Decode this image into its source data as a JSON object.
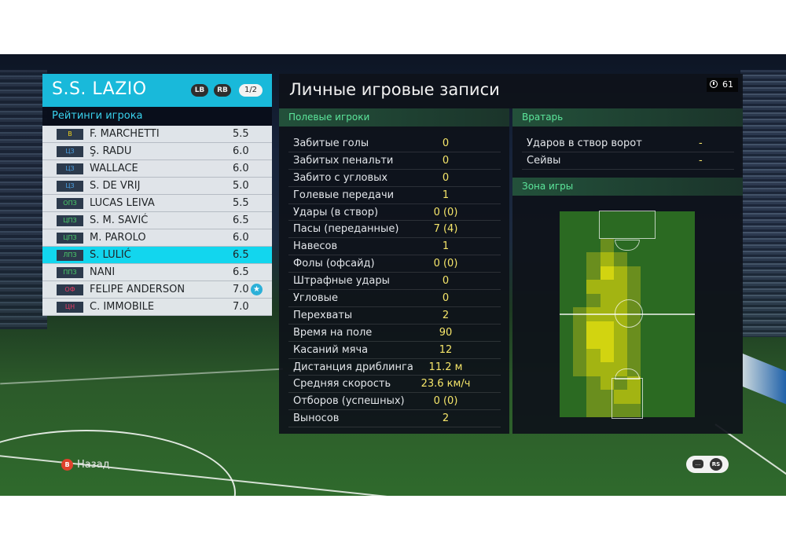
{
  "team": {
    "name": "S.S. LAZIO",
    "lb_label": "LB",
    "rb_label": "RB",
    "page_indicator": "1/2",
    "ratings_title": "Рейтинги игрока",
    "players": [
      {
        "pos": "В",
        "pos_color": "#f2d21a",
        "name": "F. MARCHETTI",
        "rating": "5.5"
      },
      {
        "pos": "ЦЗ",
        "pos_color": "#4a9ee0",
        "name": "Ş. RADU",
        "rating": "6.0"
      },
      {
        "pos": "ЦЗ",
        "pos_color": "#4a9ee0",
        "name": "WALLACE",
        "rating": "6.0"
      },
      {
        "pos": "ЦЗ",
        "pos_color": "#4a9ee0",
        "name": "S. DE VRIJ",
        "rating": "5.0"
      },
      {
        "pos": "ОПЗ",
        "pos_color": "#4bd06a",
        "name": "LUCAS LEIVA",
        "rating": "5.5"
      },
      {
        "pos": "ЦПЗ",
        "pos_color": "#4bd06a",
        "name": "S. M. SAVIĆ",
        "rating": "6.5"
      },
      {
        "pos": "ЦПЗ",
        "pos_color": "#4bd06a",
        "name": "M. PAROLO",
        "rating": "6.0"
      },
      {
        "pos": "ЛПЗ",
        "pos_color": "#4bd06a",
        "name": "S. LULIĆ",
        "rating": "6.5",
        "selected": true
      },
      {
        "pos": "ППЗ",
        "pos_color": "#4bd06a",
        "name": "NANI",
        "rating": "6.5"
      },
      {
        "pos": "ОФ",
        "pos_color": "#ec3b62",
        "name": "FELIPE ANDERSON",
        "rating": "7.0",
        "star": true
      },
      {
        "pos": "ЦН",
        "pos_color": "#ec3b62",
        "name": "C. IMMOBILE",
        "rating": "7.0"
      }
    ]
  },
  "main": {
    "title": "Личные игровые записи",
    "timer": "61",
    "field_title": "Полевые игроки",
    "field_stats": [
      {
        "label": "Забитые голы",
        "value": "0"
      },
      {
        "label": "Забитых пенальти",
        "value": "0"
      },
      {
        "label": "Забито с угловых",
        "value": "0"
      },
      {
        "label": "Голевые передачи",
        "value": "1"
      },
      {
        "label": "Удары (в створ)",
        "value": "0 (0)"
      },
      {
        "label": "Пасы (переданные)",
        "value": "7 (4)"
      },
      {
        "label": "Навесов",
        "value": "1"
      },
      {
        "label": "Фолы (офсайд)",
        "value": "0 (0)"
      },
      {
        "label": "Штрафные удары",
        "value": "0"
      },
      {
        "label": "Угловые",
        "value": "0"
      },
      {
        "label": "Перехваты",
        "value": "2"
      },
      {
        "label": "Время на поле",
        "value": "90"
      },
      {
        "label": "Касаний мяча",
        "value": "12"
      },
      {
        "label": "Дистанция дриблинга",
        "value": "11.2 м"
      },
      {
        "label": "Средняя скорость",
        "value": "23.6 км/ч"
      },
      {
        "label": "Отборов (успешных)",
        "value": "0 (0)"
      },
      {
        "label": "Выносов",
        "value": "2"
      }
    ],
    "gk_title": "Вратарь",
    "gk_stats": [
      {
        "label": "Ударов в створ ворот",
        "value": "-"
      },
      {
        "label": "Сейвы",
        "value": "-"
      }
    ],
    "zone_title": "Зона игры",
    "heatmap": [
      [
        0,
        0,
        0,
        0,
        0,
        0,
        0,
        0,
        0,
        0
      ],
      [
        0,
        0,
        0,
        0,
        0,
        0,
        0,
        0,
        0,
        0
      ],
      [
        0,
        0,
        0,
        1,
        0,
        0,
        0,
        0,
        0,
        0
      ],
      [
        0,
        0,
        1,
        2,
        1,
        0,
        0,
        0,
        0,
        0
      ],
      [
        0,
        0,
        1,
        3,
        2,
        1,
        0,
        0,
        0,
        0
      ],
      [
        0,
        0,
        2,
        2,
        2,
        1,
        0,
        0,
        0,
        0
      ],
      [
        0,
        0,
        1,
        2,
        2,
        1,
        0,
        0,
        0,
        0
      ],
      [
        0,
        1,
        2,
        2,
        2,
        1,
        0,
        0,
        0,
        0
      ],
      [
        0,
        1,
        3,
        3,
        2,
        1,
        0,
        0,
        0,
        0
      ],
      [
        0,
        1,
        3,
        3,
        2,
        1,
        0,
        0,
        0,
        0
      ],
      [
        0,
        1,
        2,
        3,
        2,
        1,
        0,
        0,
        0,
        0
      ],
      [
        0,
        1,
        2,
        2,
        2,
        1,
        0,
        0,
        0,
        0
      ],
      [
        0,
        0,
        1,
        2,
        1,
        2,
        0,
        0,
        0,
        0
      ],
      [
        0,
        0,
        1,
        1,
        2,
        2,
        0,
        0,
        0,
        0
      ],
      [
        0,
        0,
        1,
        1,
        1,
        1,
        0,
        0,
        0,
        0
      ]
    ],
    "heat_colors": [
      "#2b6a22",
      "#6a8e1e",
      "#a3b412",
      "#d2d410"
    ]
  },
  "footer": {
    "back_button": "B",
    "back_label": "Назад",
    "rs_label": "RS"
  }
}
